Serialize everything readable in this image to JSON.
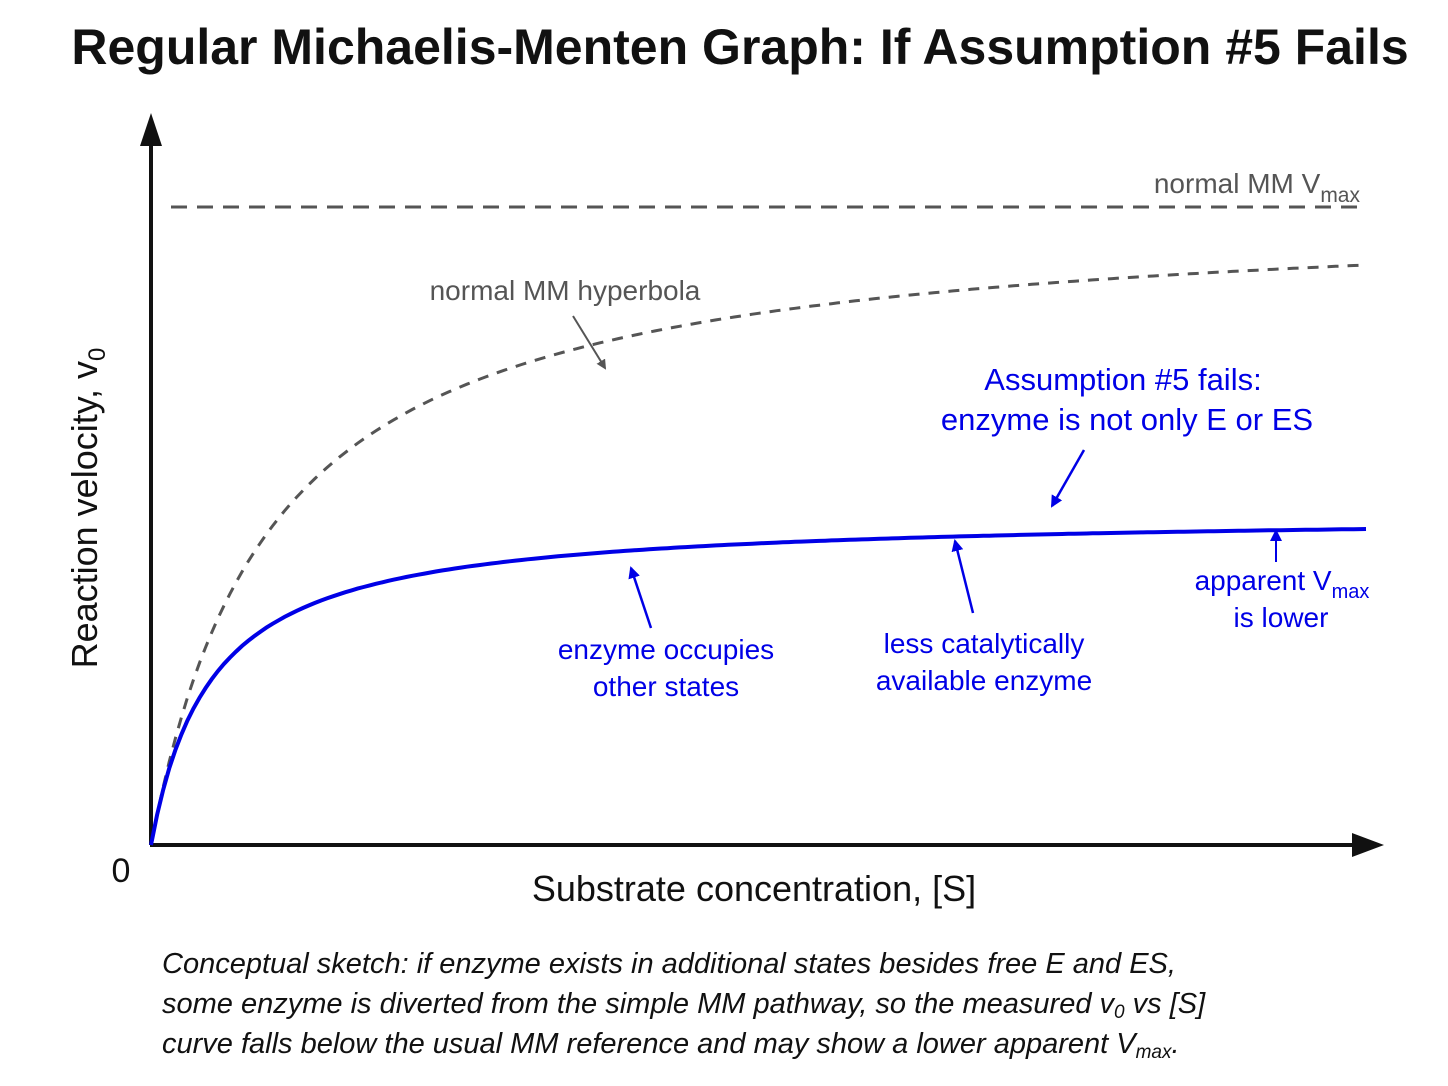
{
  "chart_data": {
    "type": "line",
    "title": "Regular Michaelis-Menten Graph: If Assumption #5 Fails",
    "xlabel": "Substrate concentration, [S]",
    "ylabel": "Reaction velocity, v",
    "ylabel_sub": "0",
    "origin_label": "0",
    "reference_line": {
      "label": "normal MM V",
      "label_sub": "max",
      "y": 1.0,
      "color": "#555555",
      "style": "dashed"
    },
    "series": [
      {
        "label": "normal MM hyperbola",
        "vmax": 1.0,
        "km": 2.0,
        "color": "#555555",
        "style": "dashed"
      },
      {
        "vmax": 0.52,
        "km": 1.0,
        "color": "#0000e6",
        "style": "solid"
      }
    ],
    "xlim": [
      0,
      20
    ],
    "ylim": [
      0,
      1.0
    ],
    "annotations": {
      "assumption": [
        "Assumption #5 fails:",
        "enzyme is not only E or ES"
      ],
      "occupies": [
        "enzyme occupies",
        "other states"
      ],
      "less_available": [
        "less catalytically",
        "available enzyme"
      ],
      "apparent_line1": "apparent V",
      "apparent_sub": "max",
      "apparent_line2": "is lower"
    }
  },
  "caption": {
    "line1": "Conceptual sketch: if enzyme exists in additional states besides free E and ES,",
    "line2_a": "some enzyme is diverted from the simple MM pathway, so the measured v",
    "line2_sub": "0",
    "line2_b": " vs [S]",
    "line3_a": "curve falls below the usual MM reference and may show a lower apparent V",
    "line3_sub": "max",
    "line3_b": "."
  }
}
